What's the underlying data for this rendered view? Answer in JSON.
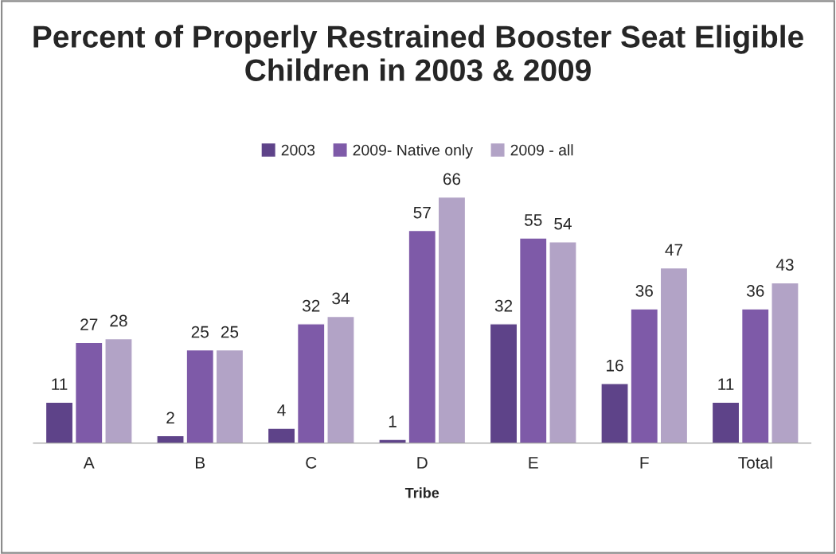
{
  "chart_data": {
    "type": "bar",
    "title": "Percent of Properly Restrained Booster Seat Eligible Children in 2003 & 2009",
    "xlabel": "Tribe",
    "categories": [
      "A",
      "B",
      "C",
      "D",
      "E",
      "F",
      "Total"
    ],
    "series": [
      {
        "name": "2003",
        "color": "#5e4389",
        "values": [
          11,
          2,
          4,
          1,
          32,
          16,
          11
        ]
      },
      {
        "name": "2009- Native only",
        "color": "#7e5aa8",
        "values": [
          27,
          25,
          32,
          57,
          55,
          36,
          36
        ]
      },
      {
        "name": "2009 - all",
        "color": "#b2a3c6",
        "values": [
          28,
          25,
          34,
          66,
          54,
          47,
          43
        ]
      }
    ],
    "data_labels": true,
    "legend": "top",
    "grid": false
  }
}
